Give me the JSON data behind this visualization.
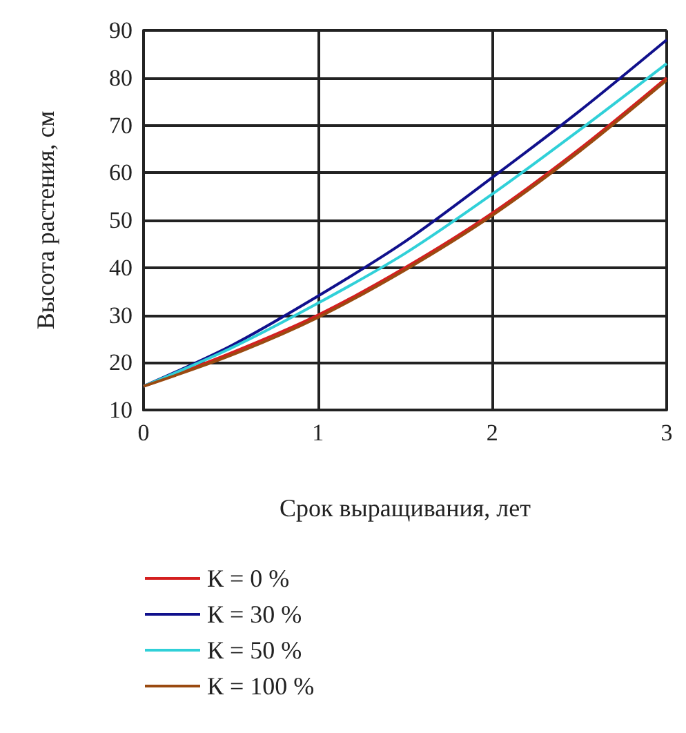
{
  "chart_data": {
    "type": "line",
    "xlabel": "Срок выращивания, лет",
    "ylabel": "Высота растения, см",
    "x": [
      0,
      0.5,
      1,
      1.5,
      2,
      2.5,
      3
    ],
    "series": [
      {
        "name": "К = 0 %",
        "color": "#d42020",
        "values": [
          15,
          22,
          30,
          40,
          51.5,
          65,
          80
        ]
      },
      {
        "name": "К = 30 %",
        "color": "#10108c",
        "values": [
          15,
          23.5,
          34,
          45.5,
          59,
          73,
          88
        ]
      },
      {
        "name": "К = 50 %",
        "color": "#30d0d8",
        "values": [
          15,
          23,
          32.5,
          43,
          55.5,
          69,
          83
        ]
      },
      {
        "name": "К = 100 %",
        "color": "#9a4a10",
        "values": [
          15,
          21.5,
          29.5,
          39.5,
          51,
          64.5,
          79.5
        ]
      }
    ],
    "xlim": [
      0,
      3
    ],
    "xticks": [
      0,
      1,
      2,
      3
    ],
    "ylim": [
      10,
      90
    ],
    "yticks": [
      10,
      20,
      30,
      40,
      50,
      60,
      70,
      80,
      90
    ],
    "grid": true,
    "legend": "bottom",
    "marker": "none",
    "line_style": "solid"
  }
}
